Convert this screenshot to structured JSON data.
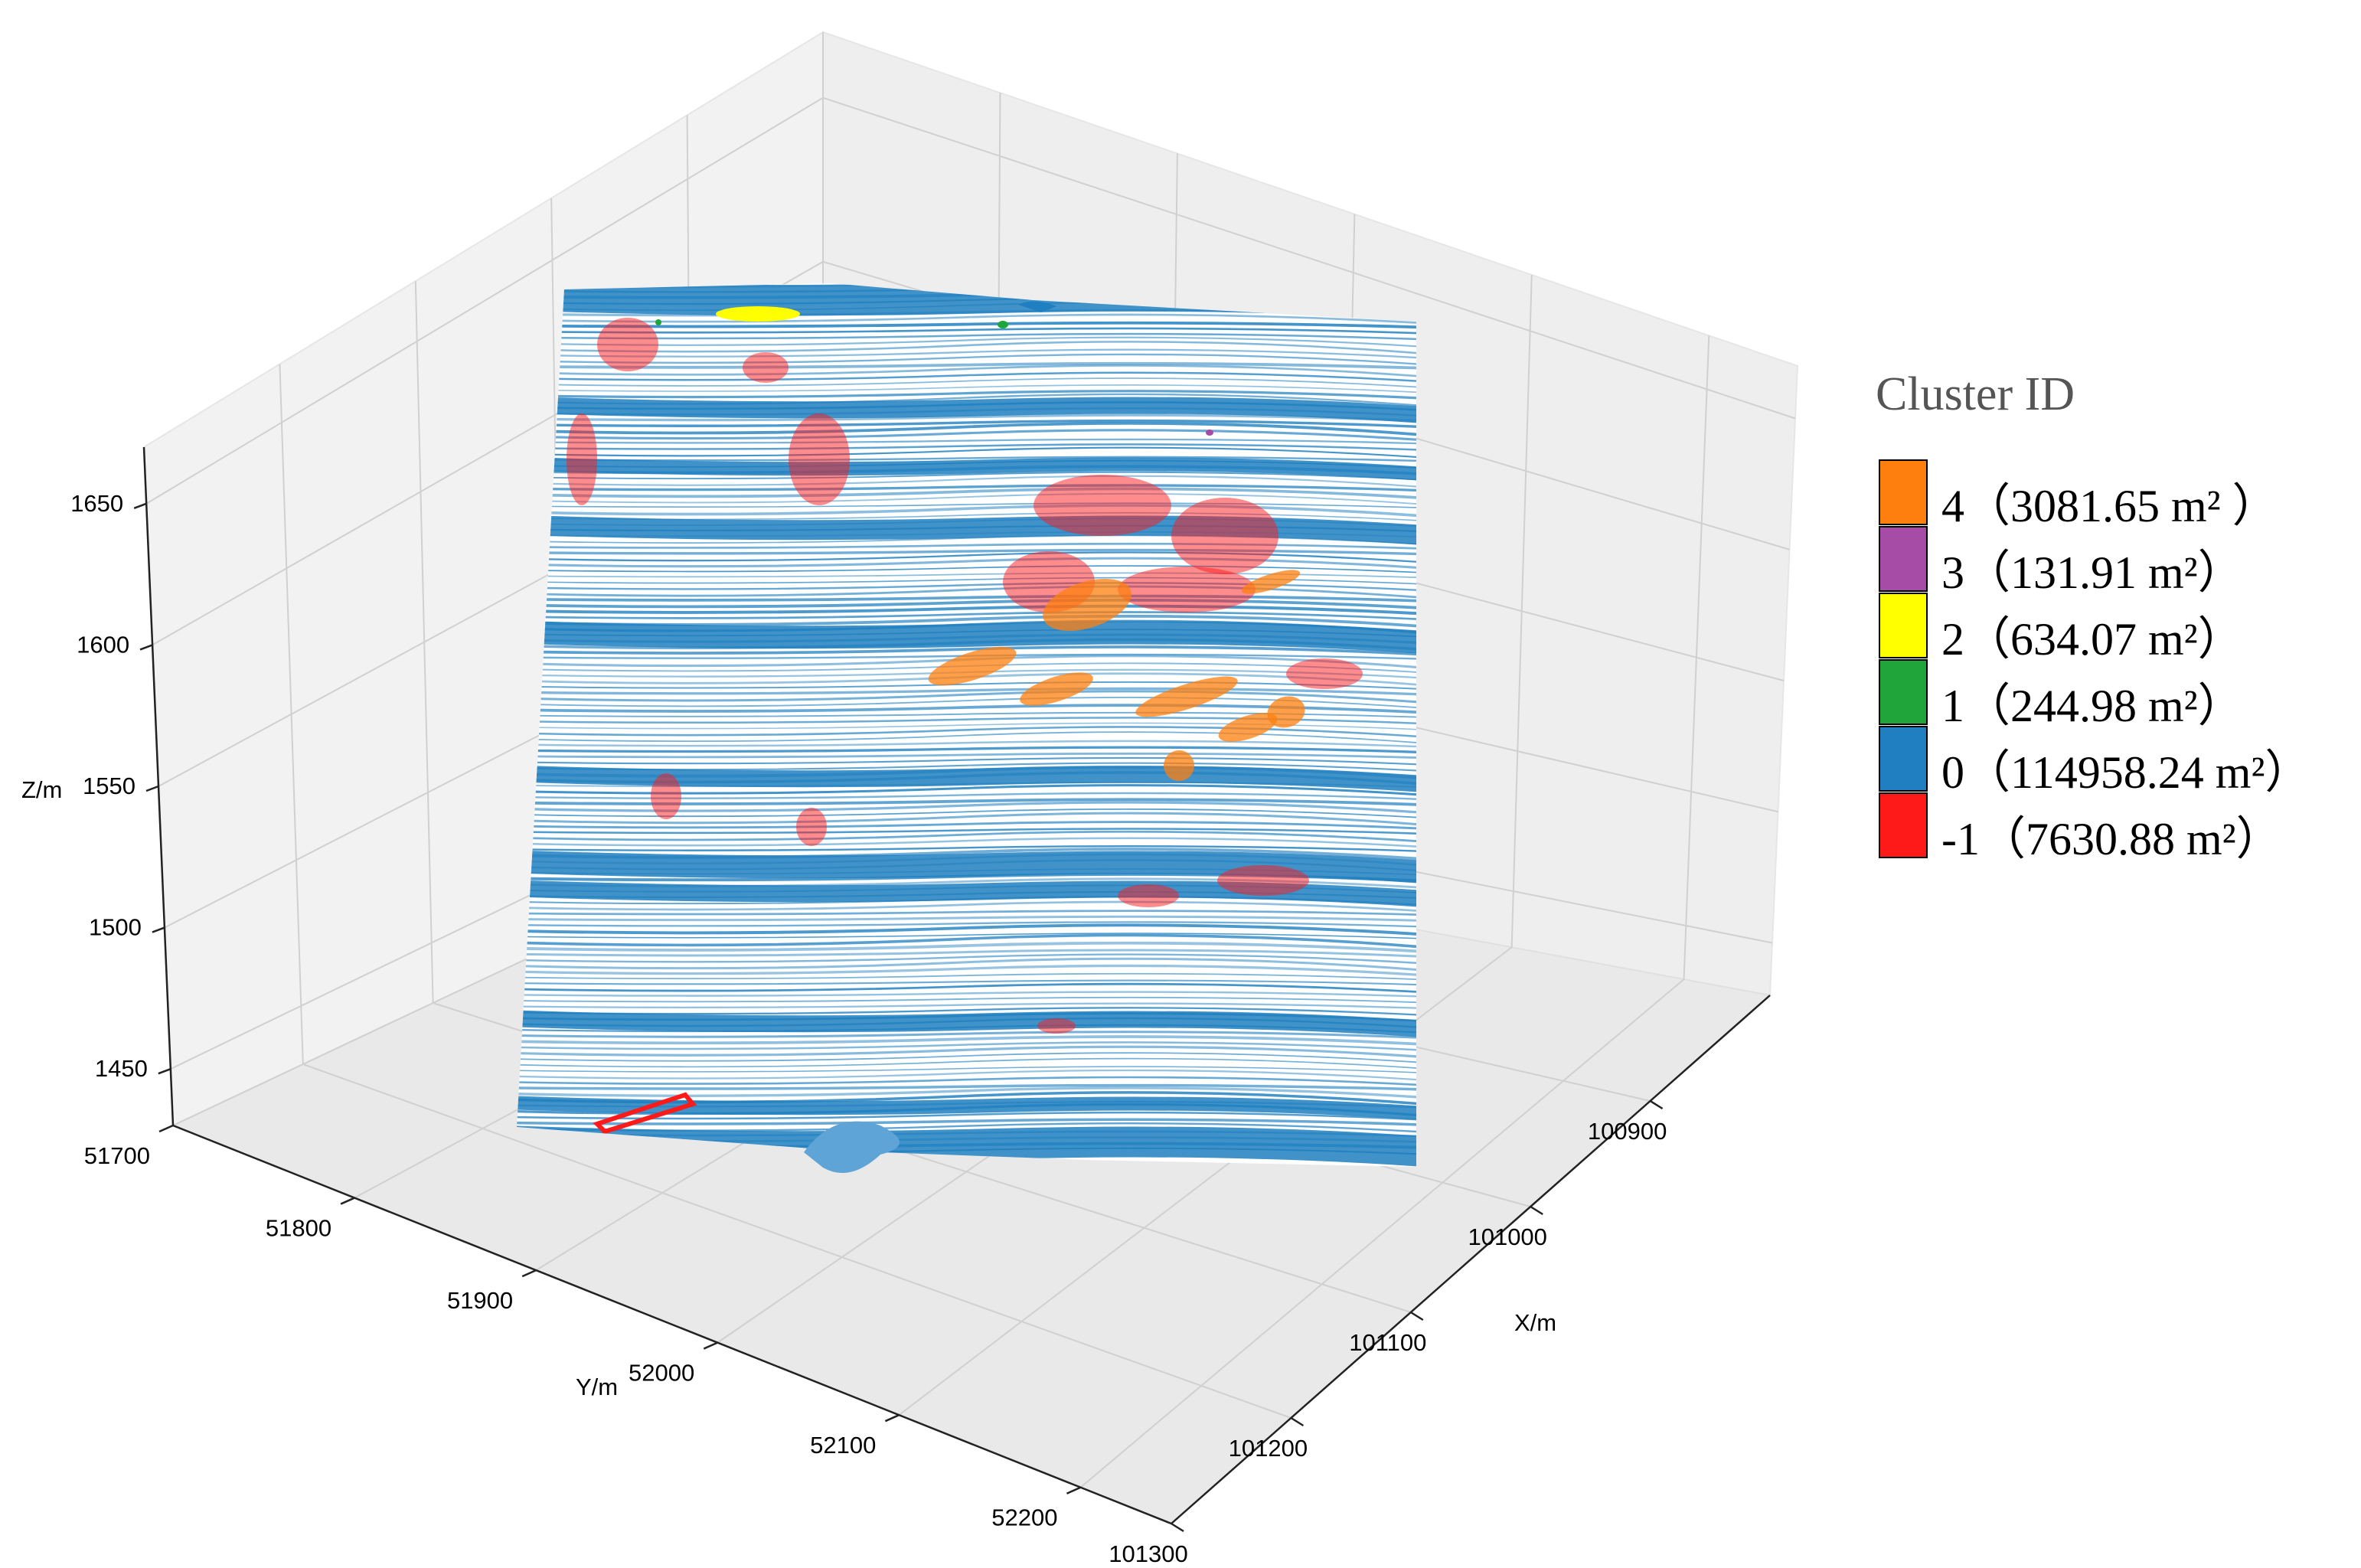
{
  "chart_data": {
    "type": "scatter",
    "subtype": "3d-point-cloud",
    "grid": true,
    "legend_position": "right",
    "axes": {
      "x": {
        "label": "X/m",
        "ticks": [
          100900,
          101000,
          101100,
          101200,
          101300
        ],
        "range": [
          100800,
          101300
        ]
      },
      "y": {
        "label": "Y/m",
        "ticks": [
          51700,
          51800,
          51900,
          52000,
          52100,
          52200
        ],
        "range": [
          51700,
          52250
        ]
      },
      "z": {
        "label": "Z/m",
        "ticks": [
          1450,
          1500,
          1550,
          1600,
          1650
        ],
        "range": [
          1430,
          1670
        ]
      }
    },
    "legend": {
      "title": "Cluster ID",
      "entries": [
        {
          "label": "4（3081.65 m²  ）",
          "cluster": 4,
          "area_m2": 3081.65,
          "color": "#ff7f0e"
        },
        {
          "label": "3（131.91 m²）",
          "cluster": 3,
          "area_m2": 131.91,
          "color": "#a64ca6"
        },
        {
          "label": "2（634.07 m²）",
          "cluster": 2,
          "area_m2": 634.07,
          "color": "#ffff00"
        },
        {
          "label": "1（244.98 m²）",
          "cluster": 1,
          "area_m2": 244.98,
          "color": "#1fa53a"
        },
        {
          "label": "0（114958.24 m²）",
          "cluster": 0,
          "area_m2": 114958.24,
          "color": "#1f7fc0"
        },
        {
          "label": "-1（7630.88 m²）",
          "cluster": -1,
          "area_m2": 7630.88,
          "color": "#ff1a1a"
        }
      ]
    }
  }
}
